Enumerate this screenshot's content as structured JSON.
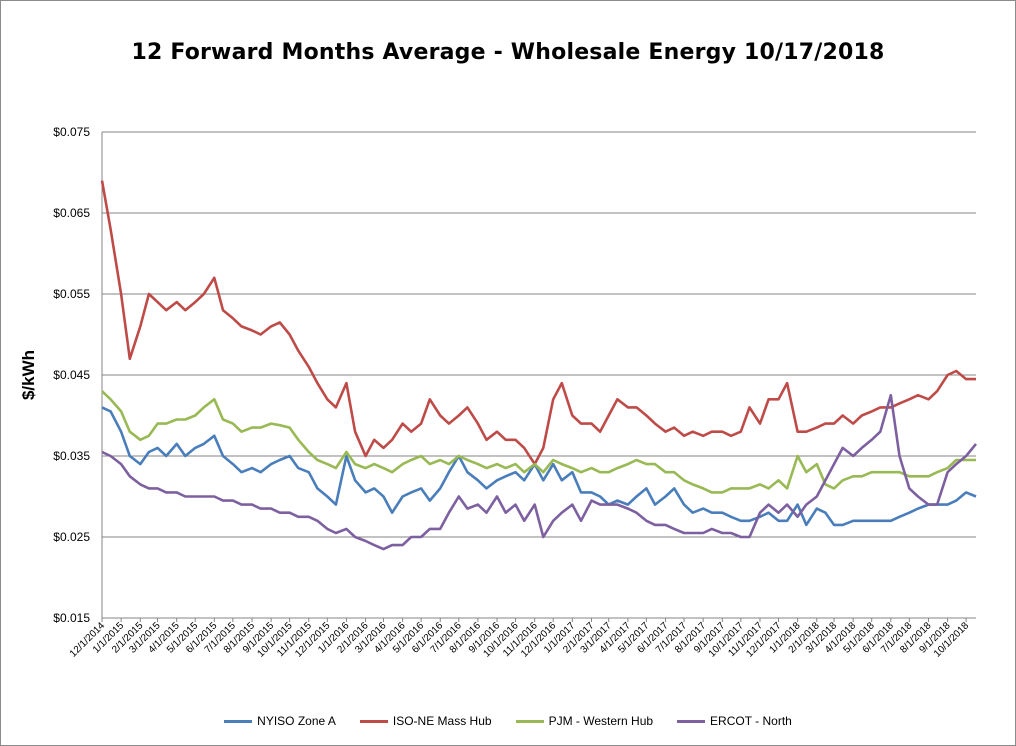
{
  "chart_data": {
    "type": "line",
    "title": "12 Forward Months Average - Wholesale Energy 10/17/2018",
    "ylabel": "$/kWh",
    "xlabel": "",
    "ylim": [
      0.015,
      0.075
    ],
    "yticks": [
      "$0.015",
      "$0.025",
      "$0.035",
      "$0.045",
      "$0.055",
      "$0.065",
      "$0.075"
    ],
    "ytick_values": [
      0.015,
      0.025,
      0.035,
      0.045,
      0.055,
      0.065,
      0.075
    ],
    "xticks": [
      "12/1/2014",
      "1/1/2015",
      "2/1/2015",
      "3/1/2015",
      "4/1/2015",
      "5/1/2015",
      "6/1/2015",
      "7/1/2015",
      "8/1/2015",
      "9/1/2015",
      "10/1/2015",
      "11/1/2015",
      "12/1/2015",
      "1/1/2016",
      "2/1/2016",
      "3/1/2016",
      "4/1/2016",
      "5/1/2016",
      "6/1/2016",
      "7/1/2016",
      "8/1/2016",
      "9/1/2016",
      "10/1/2016",
      "11/1/2016",
      "12/1/2016",
      "1/1/2017",
      "2/1/2017",
      "3/1/2017",
      "4/1/2017",
      "5/1/2017",
      "6/1/2017",
      "7/1/2017",
      "8/1/2017",
      "9/1/2017",
      "10/1/2017",
      "11/1/2017",
      "12/1/2017",
      "1/1/2018",
      "2/1/2018",
      "3/1/2018",
      "4/1/2018",
      "5/1/2018",
      "6/1/2018",
      "7/1/2018",
      "8/1/2018",
      "9/1/2018",
      "10/1/2018"
    ],
    "x_range": [
      "12/1/2014",
      "10/17/2018"
    ],
    "grid": true,
    "legend_position": "bottom",
    "series": [
      {
        "name": "NYISO Zone A",
        "color": "#4a7ebb",
        "x": [
          "12/1/2014",
          "12/15/2014",
          "1/1/2015",
          "1/15/2015",
          "2/1/2015",
          "2/15/2015",
          "3/1/2015",
          "3/15/2015",
          "4/1/2015",
          "4/15/2015",
          "5/1/2015",
          "5/15/2015",
          "6/1/2015",
          "6/15/2015",
          "7/1/2015",
          "7/15/2015",
          "8/1/2015",
          "8/15/2015",
          "9/1/2015",
          "9/15/2015",
          "10/1/2015",
          "10/15/2015",
          "11/1/2015",
          "11/15/2015",
          "12/1/2015",
          "12/15/2015",
          "1/1/2016",
          "1/15/2016",
          "2/1/2016",
          "2/15/2016",
          "3/1/2016",
          "3/15/2016",
          "4/1/2016",
          "4/15/2016",
          "5/1/2016",
          "5/15/2016",
          "6/1/2016",
          "6/15/2016",
          "7/1/2016",
          "7/15/2016",
          "8/1/2016",
          "8/15/2016",
          "9/1/2016",
          "9/15/2016",
          "10/1/2016",
          "10/15/2016",
          "11/1/2016",
          "11/15/2016",
          "12/1/2016",
          "12/15/2016",
          "1/1/2017",
          "1/15/2017",
          "2/1/2017",
          "2/15/2017",
          "3/1/2017",
          "3/15/2017",
          "4/1/2017",
          "4/15/2017",
          "5/1/2017",
          "5/15/2017",
          "6/1/2017",
          "6/15/2017",
          "7/1/2017",
          "7/15/2017",
          "8/1/2017",
          "8/15/2017",
          "9/1/2017",
          "9/15/2017",
          "10/1/2017",
          "10/15/2017",
          "11/1/2017",
          "11/15/2017",
          "12/1/2017",
          "12/15/2017",
          "1/1/2018",
          "1/15/2018",
          "2/1/2018",
          "2/15/2018",
          "3/1/2018",
          "3/15/2018",
          "4/1/2018",
          "4/15/2018",
          "5/1/2018",
          "5/15/2018",
          "6/1/2018",
          "6/15/2018",
          "7/1/2018",
          "7/15/2018",
          "8/1/2018",
          "8/15/2018",
          "9/1/2018",
          "9/15/2018",
          "10/1/2018",
          "10/17/2018"
        ],
        "values": [
          0.041,
          0.0405,
          0.038,
          0.035,
          0.034,
          0.0355,
          0.036,
          0.035,
          0.0365,
          0.035,
          0.036,
          0.0365,
          0.0375,
          0.035,
          0.034,
          0.033,
          0.0335,
          0.033,
          0.034,
          0.0345,
          0.035,
          0.0335,
          0.033,
          0.031,
          0.03,
          0.029,
          0.035,
          0.032,
          0.0305,
          0.031,
          0.03,
          0.028,
          0.03,
          0.0305,
          0.031,
          0.0295,
          0.031,
          0.033,
          0.035,
          0.033,
          0.032,
          0.031,
          0.032,
          0.0325,
          0.033,
          0.032,
          0.034,
          0.032,
          0.034,
          0.032,
          0.033,
          0.0305,
          0.0305,
          0.03,
          0.029,
          0.0295,
          0.029,
          0.03,
          0.031,
          0.029,
          0.03,
          0.031,
          0.029,
          0.028,
          0.0285,
          0.028,
          0.028,
          0.0275,
          0.027,
          0.027,
          0.0275,
          0.028,
          0.027,
          0.027,
          0.029,
          0.0265,
          0.0285,
          0.028,
          0.0265,
          0.0265,
          0.027,
          0.027,
          0.027,
          0.027,
          0.027,
          0.0275,
          0.028,
          0.0285,
          0.029,
          0.029,
          0.029,
          0.0295,
          0.0305,
          0.03
        ]
      },
      {
        "name": "ISO-NE Mass Hub",
        "color": "#be4b48",
        "x": [
          "12/1/2014",
          "12/15/2014",
          "1/1/2015",
          "1/15/2015",
          "2/1/2015",
          "2/15/2015",
          "3/1/2015",
          "3/15/2015",
          "4/1/2015",
          "4/15/2015",
          "5/1/2015",
          "5/15/2015",
          "6/1/2015",
          "6/15/2015",
          "7/1/2015",
          "7/15/2015",
          "8/1/2015",
          "8/15/2015",
          "9/1/2015",
          "9/15/2015",
          "10/1/2015",
          "10/15/2015",
          "11/1/2015",
          "11/15/2015",
          "12/1/2015",
          "12/15/2015",
          "1/1/2016",
          "1/15/2016",
          "2/1/2016",
          "2/15/2016",
          "3/1/2016",
          "3/15/2016",
          "4/1/2016",
          "4/15/2016",
          "5/1/2016",
          "5/15/2016",
          "6/1/2016",
          "6/15/2016",
          "7/1/2016",
          "7/15/2016",
          "8/1/2016",
          "8/15/2016",
          "9/1/2016",
          "9/15/2016",
          "10/1/2016",
          "10/15/2016",
          "11/1/2016",
          "11/15/2016",
          "12/1/2016",
          "12/15/2016",
          "1/1/2017",
          "1/15/2017",
          "2/1/2017",
          "2/15/2017",
          "3/1/2017",
          "3/15/2017",
          "4/1/2017",
          "4/15/2017",
          "5/1/2017",
          "5/15/2017",
          "6/1/2017",
          "6/15/2017",
          "7/1/2017",
          "7/15/2017",
          "8/1/2017",
          "8/15/2017",
          "9/1/2017",
          "9/15/2017",
          "10/1/2017",
          "10/15/2017",
          "11/1/2017",
          "11/15/2017",
          "12/1/2017",
          "12/15/2017",
          "1/1/2018",
          "1/15/2018",
          "2/1/2018",
          "2/15/2018",
          "3/1/2018",
          "3/15/2018",
          "4/1/2018",
          "4/15/2018",
          "5/1/2018",
          "5/15/2018",
          "6/1/2018",
          "6/15/2018",
          "7/1/2018",
          "7/15/2018",
          "8/1/2018",
          "8/15/2018",
          "9/1/2018",
          "9/15/2018",
          "10/1/2018",
          "10/17/2018"
        ],
        "values": [
          0.069,
          0.063,
          0.055,
          0.047,
          0.051,
          0.055,
          0.054,
          0.053,
          0.054,
          0.053,
          0.054,
          0.055,
          0.057,
          0.053,
          0.052,
          0.051,
          0.0505,
          0.05,
          0.051,
          0.0515,
          0.05,
          0.048,
          0.046,
          0.044,
          0.042,
          0.041,
          0.044,
          0.038,
          0.035,
          0.037,
          0.036,
          0.037,
          0.039,
          0.038,
          0.039,
          0.042,
          0.04,
          0.039,
          0.04,
          0.041,
          0.039,
          0.037,
          0.038,
          0.037,
          0.037,
          0.036,
          0.034,
          0.036,
          0.042,
          0.044,
          0.04,
          0.039,
          0.039,
          0.038,
          0.04,
          0.042,
          0.041,
          0.041,
          0.04,
          0.039,
          0.038,
          0.0385,
          0.0375,
          0.038,
          0.0375,
          0.038,
          0.038,
          0.0375,
          0.038,
          0.041,
          0.039,
          0.042,
          0.042,
          0.044,
          0.038,
          0.038,
          0.0385,
          0.039,
          0.039,
          0.04,
          0.039,
          0.04,
          0.0405,
          0.041,
          0.041,
          0.0415,
          0.042,
          0.0425,
          0.042,
          0.043,
          0.045,
          0.0455,
          0.0445,
          0.0445
        ]
      },
      {
        "name": "PJM - Western Hub",
        "color": "#98b954",
        "x": [
          "12/1/2014",
          "12/15/2014",
          "1/1/2015",
          "1/15/2015",
          "2/1/2015",
          "2/15/2015",
          "3/1/2015",
          "3/15/2015",
          "4/1/2015",
          "4/15/2015",
          "5/1/2015",
          "5/15/2015",
          "6/1/2015",
          "6/15/2015",
          "7/1/2015",
          "7/15/2015",
          "8/1/2015",
          "8/15/2015",
          "9/1/2015",
          "9/15/2015",
          "10/1/2015",
          "10/15/2015",
          "11/1/2015",
          "11/15/2015",
          "12/1/2015",
          "12/15/2015",
          "1/1/2016",
          "1/15/2016",
          "2/1/2016",
          "2/15/2016",
          "3/1/2016",
          "3/15/2016",
          "4/1/2016",
          "4/15/2016",
          "5/1/2016",
          "5/15/2016",
          "6/1/2016",
          "6/15/2016",
          "7/1/2016",
          "7/15/2016",
          "8/1/2016",
          "8/15/2016",
          "9/1/2016",
          "9/15/2016",
          "10/1/2016",
          "10/15/2016",
          "11/1/2016",
          "11/15/2016",
          "12/1/2016",
          "12/15/2016",
          "1/1/2017",
          "1/15/2017",
          "2/1/2017",
          "2/15/2017",
          "3/1/2017",
          "3/15/2017",
          "4/1/2017",
          "4/15/2017",
          "5/1/2017",
          "5/15/2017",
          "6/1/2017",
          "6/15/2017",
          "7/1/2017",
          "7/15/2017",
          "8/1/2017",
          "8/15/2017",
          "9/1/2017",
          "9/15/2017",
          "10/1/2017",
          "10/15/2017",
          "11/1/2017",
          "11/15/2017",
          "12/1/2017",
          "12/15/2017",
          "1/1/2018",
          "1/15/2018",
          "2/1/2018",
          "2/15/2018",
          "3/1/2018",
          "3/15/2018",
          "4/1/2018",
          "4/15/2018",
          "5/1/2018",
          "5/15/2018",
          "6/1/2018",
          "6/15/2018",
          "7/1/2018",
          "7/15/2018",
          "8/1/2018",
          "8/15/2018",
          "9/1/2018",
          "9/15/2018",
          "10/1/2018",
          "10/17/2018"
        ],
        "values": [
          0.043,
          0.042,
          0.0405,
          0.038,
          0.037,
          0.0375,
          0.039,
          0.039,
          0.0395,
          0.0395,
          0.04,
          0.041,
          0.042,
          0.0395,
          0.039,
          0.038,
          0.0385,
          0.0385,
          0.039,
          0.0388,
          0.0385,
          0.037,
          0.0355,
          0.0345,
          0.034,
          0.0335,
          0.0355,
          0.034,
          0.0335,
          0.034,
          0.0335,
          0.033,
          0.034,
          0.0345,
          0.035,
          0.034,
          0.0345,
          0.034,
          0.035,
          0.0345,
          0.034,
          0.0335,
          0.034,
          0.0335,
          0.034,
          0.033,
          0.034,
          0.033,
          0.0345,
          0.034,
          0.0335,
          0.033,
          0.0335,
          0.033,
          0.033,
          0.0335,
          0.034,
          0.0345,
          0.034,
          0.034,
          0.033,
          0.033,
          0.032,
          0.0315,
          0.031,
          0.0305,
          0.0305,
          0.031,
          0.031,
          0.031,
          0.0315,
          0.031,
          0.032,
          0.031,
          0.035,
          0.033,
          0.034,
          0.0315,
          0.031,
          0.032,
          0.0325,
          0.0325,
          0.033,
          0.033,
          0.033,
          0.033,
          0.0325,
          0.0325,
          0.0325,
          0.033,
          0.0335,
          0.0345,
          0.0345,
          0.0345
        ]
      },
      {
        "name": "ERCOT - North",
        "color": "#7d60a0",
        "x": [
          "12/1/2014",
          "12/15/2014",
          "1/1/2015",
          "1/15/2015",
          "2/1/2015",
          "2/15/2015",
          "3/1/2015",
          "3/15/2015",
          "4/1/2015",
          "4/15/2015",
          "5/1/2015",
          "5/15/2015",
          "6/1/2015",
          "6/15/2015",
          "7/1/2015",
          "7/15/2015",
          "8/1/2015",
          "8/15/2015",
          "9/1/2015",
          "9/15/2015",
          "10/1/2015",
          "10/15/2015",
          "11/1/2015",
          "11/15/2015",
          "12/1/2015",
          "12/15/2015",
          "1/1/2016",
          "1/15/2016",
          "2/1/2016",
          "2/15/2016",
          "3/1/2016",
          "3/15/2016",
          "4/1/2016",
          "4/15/2016",
          "5/1/2016",
          "5/15/2016",
          "6/1/2016",
          "6/15/2016",
          "7/1/2016",
          "7/15/2016",
          "8/1/2016",
          "8/15/2016",
          "9/1/2016",
          "9/15/2016",
          "10/1/2016",
          "10/15/2016",
          "11/1/2016",
          "11/15/2016",
          "12/1/2016",
          "12/15/2016",
          "1/1/2017",
          "1/15/2017",
          "2/1/2017",
          "2/15/2017",
          "3/1/2017",
          "3/15/2017",
          "4/1/2017",
          "4/15/2017",
          "5/1/2017",
          "5/15/2017",
          "6/1/2017",
          "6/15/2017",
          "7/1/2017",
          "7/15/2017",
          "8/1/2017",
          "8/15/2017",
          "9/1/2017",
          "9/15/2017",
          "10/1/2017",
          "10/15/2017",
          "11/1/2017",
          "11/15/2017",
          "12/1/2017",
          "12/15/2017",
          "1/1/2018",
          "1/15/2018",
          "2/1/2018",
          "2/15/2018",
          "3/1/2018",
          "3/15/2018",
          "4/1/2018",
          "4/15/2018",
          "5/1/2018",
          "5/15/2018",
          "6/1/2018",
          "6/15/2018",
          "7/1/2018",
          "7/15/2018",
          "8/1/2018",
          "8/15/2018",
          "9/1/2018",
          "9/15/2018",
          "10/1/2018",
          "10/17/2018"
        ],
        "values": [
          0.0355,
          0.035,
          0.034,
          0.0325,
          0.0315,
          0.031,
          0.031,
          0.0305,
          0.0305,
          0.03,
          0.03,
          0.03,
          0.03,
          0.0295,
          0.0295,
          0.029,
          0.029,
          0.0285,
          0.0285,
          0.028,
          0.028,
          0.0275,
          0.0275,
          0.027,
          0.026,
          0.0255,
          0.026,
          0.025,
          0.0245,
          0.024,
          0.0235,
          0.024,
          0.024,
          0.025,
          0.025,
          0.026,
          0.026,
          0.028,
          0.03,
          0.0285,
          0.029,
          0.028,
          0.03,
          0.028,
          0.029,
          0.027,
          0.029,
          0.025,
          0.027,
          0.028,
          0.029,
          0.027,
          0.0295,
          0.029,
          0.029,
          0.029,
          0.0285,
          0.028,
          0.027,
          0.0265,
          0.0265,
          0.026,
          0.0255,
          0.0255,
          0.0255,
          0.026,
          0.0255,
          0.0255,
          0.025,
          0.025,
          0.028,
          0.029,
          0.028,
          0.029,
          0.0275,
          0.029,
          0.03,
          0.032,
          0.034,
          0.036,
          0.035,
          0.036,
          0.037,
          0.038,
          0.0425,
          0.035,
          0.031,
          0.03,
          0.029,
          0.029,
          0.033,
          0.034,
          0.035,
          0.0365
        ]
      }
    ]
  }
}
